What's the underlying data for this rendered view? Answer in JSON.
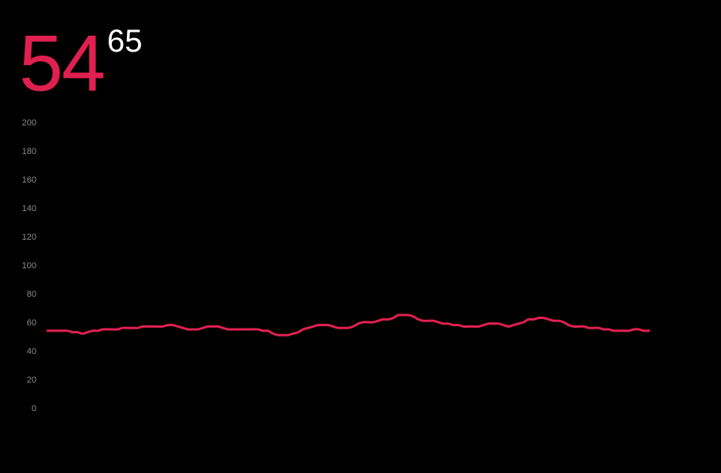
{
  "header": {
    "current": "54",
    "max": "65"
  },
  "colors": {
    "background": "#000000",
    "line": "#e0204f",
    "current_text": "#e0204f",
    "max_text": "#ffffff",
    "tick_text": "#8a8a8a"
  },
  "chart_data": {
    "type": "line",
    "title": "",
    "xlabel": "",
    "ylabel": "",
    "ylim": [
      0,
      200
    ],
    "yticks": [
      "0",
      "20",
      "40",
      "60",
      "80",
      "100",
      "120",
      "140",
      "160",
      "180",
      "200"
    ],
    "grid": false,
    "series": [
      {
        "values": [
          54,
          54,
          54,
          54,
          54,
          53,
          53,
          52,
          53,
          54,
          54,
          55,
          55,
          55,
          55,
          56,
          56,
          56,
          56,
          57,
          57,
          57,
          57,
          57,
          58,
          58,
          57,
          56,
          55,
          55,
          55,
          56,
          57,
          57,
          57,
          56,
          55,
          55,
          55,
          55,
          55,
          55,
          55,
          54,
          54,
          52,
          51,
          51,
          51,
          52,
          53,
          55,
          56,
          57,
          58,
          58,
          58,
          57,
          56,
          56,
          56,
          57,
          59,
          60,
          60,
          60,
          61,
          62,
          62,
          63,
          65,
          65,
          65,
          64,
          62,
          61,
          61,
          61,
          60,
          59,
          59,
          58,
          58,
          57,
          57,
          57,
          57,
          58,
          59,
          59,
          59,
          58,
          57,
          58,
          59,
          60,
          62,
          62,
          63,
          63,
          62,
          61,
          61,
          60,
          58,
          57,
          57,
          57,
          56,
          56,
          56,
          55,
          55,
          54,
          54,
          54,
          54,
          55,
          55,
          54,
          54
        ]
      }
    ]
  }
}
